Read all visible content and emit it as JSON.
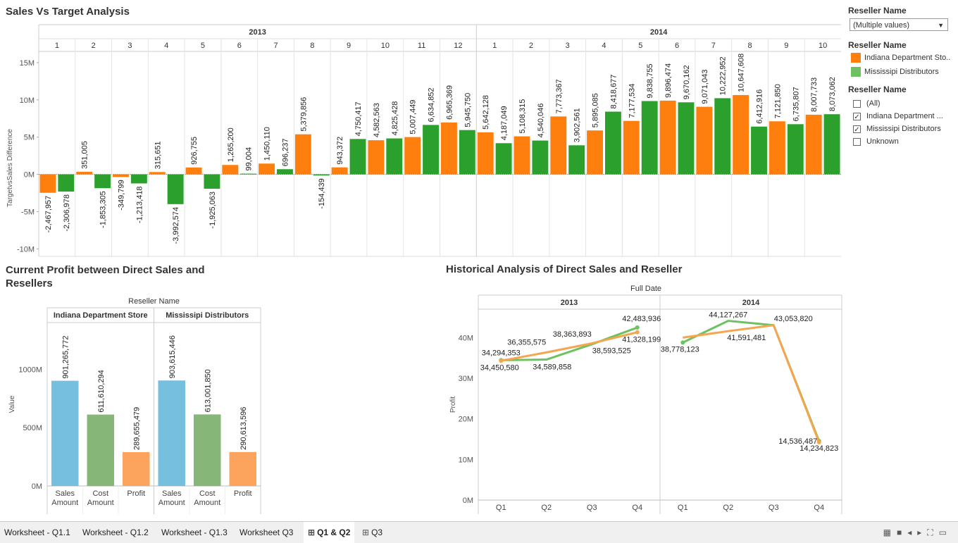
{
  "titles": {
    "top": "Sales Vs Target Analysis",
    "left": "Current Profit between Direct Sales and Resellers",
    "left_line1": "Current Profit between Direct Sales and",
    "left_line2": "Resellers",
    "right": "Historical Analysis of Direct Sales and Reseller"
  },
  "colors": {
    "indiana": "#ff7f0e",
    "mississipi": "#2ca02c",
    "sales_amount": "#76bfdf",
    "cost_amount": "#86b778",
    "profit": "#fca35e",
    "line_indiana": "#f4a64e",
    "line_mississipi": "#6cc160"
  },
  "legend": {
    "filter_title": "Reseller Name",
    "dropdown_value": "(Multiple values)",
    "color_title": "Reseller Name",
    "color_items": [
      "Indiana Department Sto..",
      "Mississipi Distributors"
    ],
    "check_title": "Reseller Name",
    "check_items": [
      {
        "label": "(All)",
        "checked": false
      },
      {
        "label": "Indiana Department ...",
        "checked": true
      },
      {
        "label": "Mississipi Distributors",
        "checked": true
      },
      {
        "label": "Unknown",
        "checked": false
      }
    ]
  },
  "tabs": [
    {
      "label": "Worksheet - Q1.1",
      "active": false,
      "icon": ""
    },
    {
      "label": "Worksheet - Q1.2",
      "active": false,
      "icon": ""
    },
    {
      "label": "Worksheet - Q1.3",
      "active": false,
      "icon": ""
    },
    {
      "label": "Worksheet Q3",
      "active": false,
      "icon": ""
    },
    {
      "label": "Q1 & Q2",
      "active": true,
      "icon": "dashboard-icon"
    },
    {
      "label": "Q3",
      "active": false,
      "icon": "dashboard-icon"
    }
  ],
  "chart_data": [
    {
      "type": "bar",
      "title": "Sales Vs Target Analysis",
      "ylabel": "TargetvsSales Difference",
      "yticks": [
        "15M",
        "10M",
        "5M",
        "0M",
        "-5M",
        "-10M"
      ],
      "ylim": [
        -11000000,
        16500000
      ],
      "years": [
        "2013",
        "2014"
      ],
      "months": [
        {
          "year": "2013",
          "month": "1",
          "values": [
            -2467957,
            -2306978
          ]
        },
        {
          "year": "2013",
          "month": "2",
          "values": [
            351005,
            -1853305
          ]
        },
        {
          "year": "2013",
          "month": "3",
          "values": [
            -349799,
            -1213418
          ]
        },
        {
          "year": "2013",
          "month": "4",
          "values": [
            315651,
            -3992574
          ]
        },
        {
          "year": "2013",
          "month": "5",
          "values": [
            926755,
            -1925063
          ]
        },
        {
          "year": "2013",
          "month": "6",
          "values": [
            1265200,
            99004
          ]
        },
        {
          "year": "2013",
          "month": "7",
          "values": [
            1450110,
            696237
          ]
        },
        {
          "year": "2013",
          "month": "8",
          "values": [
            5379856,
            -154439
          ]
        },
        {
          "year": "2013",
          "month": "9",
          "values": [
            943372,
            4750417
          ]
        },
        {
          "year": "2013",
          "month": "10",
          "values": [
            4582563,
            4825428
          ]
        },
        {
          "year": "2013",
          "month": "11",
          "values": [
            5007449,
            6634852
          ]
        },
        {
          "year": "2013",
          "month": "12",
          "values": [
            6965369,
            5945750
          ]
        },
        {
          "year": "2014",
          "month": "1",
          "values": [
            5642128,
            4187049
          ]
        },
        {
          "year": "2014",
          "month": "2",
          "values": [
            5108315,
            4540046
          ]
        },
        {
          "year": "2014",
          "month": "3",
          "values": [
            7773367,
            3902561
          ]
        },
        {
          "year": "2014",
          "month": "4",
          "values": [
            5895085,
            8418677
          ]
        },
        {
          "year": "2014",
          "month": "5",
          "values": [
            7177534,
            9838755
          ]
        },
        {
          "year": "2014",
          "month": "6",
          "values": [
            9896474,
            9670162
          ]
        },
        {
          "year": "2014",
          "month": "7",
          "values": [
            9071043,
            10222952
          ]
        },
        {
          "year": "2014",
          "month": "8",
          "values": [
            10647608,
            6412916
          ]
        },
        {
          "year": "2014",
          "month": "9",
          "values": [
            7121850,
            6735807
          ]
        },
        {
          "year": "2014",
          "month": "10",
          "values": [
            8007733,
            8073062
          ]
        }
      ]
    },
    {
      "type": "bar",
      "title": "Current Profit between Direct Sales and Resellers",
      "header": "Reseller Name",
      "ylabel": "Value",
      "yticks": [
        "1000M",
        "500M",
        "0M"
      ],
      "ylim": [
        0,
        1400000000
      ],
      "groups": [
        {
          "name": "Indiana Department Store",
          "bars": [
            {
              "label_line1": "Sales",
              "label_line2": "Amount",
              "value": 901265772
            },
            {
              "label_line1": "Cost",
              "label_line2": "Amount",
              "value": 611610294
            },
            {
              "label_line1": "Profit",
              "label_line2": "",
              "value": 289655479
            }
          ]
        },
        {
          "name": "Mississipi Distributors",
          "bars": [
            {
              "label_line1": "Sales",
              "label_line2": "Amount",
              "value": 903615446
            },
            {
              "label_line1": "Cost",
              "label_line2": "Amount",
              "value": 613001850
            },
            {
              "label_line1": "Profit",
              "label_line2": "",
              "value": 290613596
            }
          ]
        }
      ]
    },
    {
      "type": "line",
      "title": "Historical Analysis of Direct Sales and Reseller",
      "header": "Full Date",
      "ylabel": "Profit",
      "yticks": [
        "40M",
        "30M",
        "20M",
        "10M",
        "0M"
      ],
      "ylim": [
        0,
        47000000
      ],
      "years": [
        "2013",
        "2014"
      ],
      "quarters": [
        "Q1",
        "Q2",
        "Q3",
        "Q4"
      ],
      "series": [
        {
          "key": "indiana",
          "values": [
            [
              34294353,
              36355575,
              38593525,
              41328199
            ],
            [
              40000000,
              41591481,
              43053820,
              14234823
            ]
          ]
        },
        {
          "key": "mississipi",
          "values": [
            [
              34450580,
              34589858,
              38363893,
              42483936
            ],
            [
              38778123,
              44127267,
              43053820,
              14536487
            ]
          ]
        }
      ],
      "labels": [
        {
          "text": "34,294,353",
          "year": 0,
          "q": 0,
          "v": 34294353,
          "dx": 0,
          "dy": -8,
          "anchor": "middle"
        },
        {
          "text": "34,450,580",
          "year": 0,
          "q": 0,
          "v": 34450580,
          "dx": -2,
          "dy": 14,
          "anchor": "middle"
        },
        {
          "text": "36,355,575",
          "year": 0,
          "q": 1,
          "v": 36355575,
          "dx": -28,
          "dy": -11,
          "anchor": "middle"
        },
        {
          "text": "34,589,858",
          "year": 0,
          "q": 1,
          "v": 34589858,
          "dx": 8,
          "dy": 14,
          "anchor": "middle"
        },
        {
          "text": "38,363,893",
          "year": 0,
          "q": 2,
          "v": 38363893,
          "dx": -28,
          "dy": -11,
          "anchor": "middle"
        },
        {
          "text": "38,593,525",
          "year": 0,
          "q": 2,
          "v": 38593525,
          "dx": 28,
          "dy": 14,
          "anchor": "middle"
        },
        {
          "text": "42,483,936",
          "year": 0,
          "q": 3,
          "v": 42483936,
          "dx": 6,
          "dy": -9,
          "anchor": "middle"
        },
        {
          "text": "41,328,199",
          "year": 0,
          "q": 3,
          "v": 41328199,
          "dx": 6,
          "dy": 14,
          "anchor": "middle"
        },
        {
          "text": "44,127,267",
          "year": 1,
          "q": 1,
          "v": 44127267,
          "dx": 0,
          "dy": -5,
          "anchor": "middle"
        },
        {
          "text": "41,591,481",
          "year": 1,
          "q": 1,
          "v": 41591481,
          "dx": 26,
          "dy": 13,
          "anchor": "middle"
        },
        {
          "text": "43,053,820",
          "year": 1,
          "q": 2,
          "v": 43053820,
          "dx": 28,
          "dy": -6,
          "anchor": "middle"
        },
        {
          "text": "38,778,123",
          "year": 1,
          "q": 0,
          "v": 38778123,
          "dx": -4,
          "dy": 13,
          "anchor": "middle"
        },
        {
          "text": "14,536,487",
          "year": 1,
          "q": 3,
          "v": 14536487,
          "dx": -30,
          "dy": 4,
          "anchor": "middle"
        },
        {
          "text": "14,234,823",
          "year": 1,
          "q": 3,
          "v": 14234823,
          "dx": 0,
          "dy": 12,
          "anchor": "middle"
        }
      ]
    }
  ]
}
